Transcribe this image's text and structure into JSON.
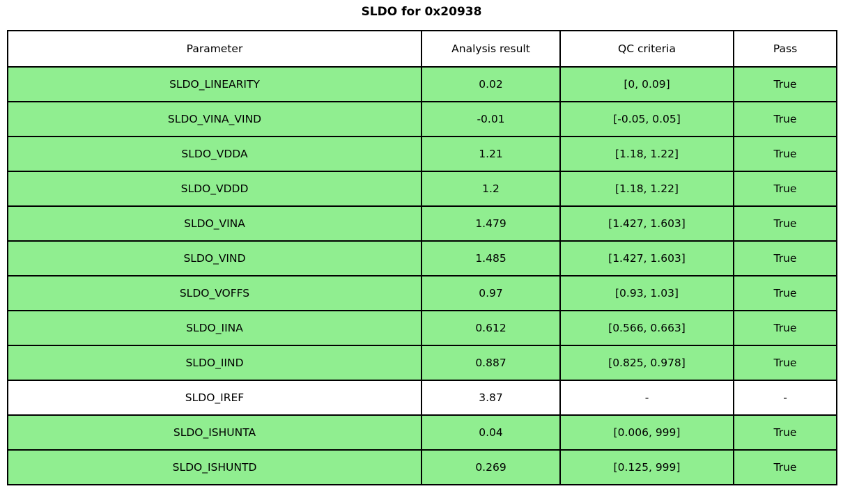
{
  "title": "SLDO for 0x20938",
  "colors": {
    "pass_row_green": "#90EE90",
    "neutral_row_white": "#ffffff",
    "border_black": "#000000"
  },
  "table": {
    "columns": [
      "Parameter",
      "Analysis result",
      "QC criteria",
      "Pass"
    ],
    "rows": [
      {
        "parameter": "SLDO_LINEARITY",
        "analysis_result": "0.02",
        "qc_criteria": "[0, 0.09]",
        "pass": "True",
        "highlight": true
      },
      {
        "parameter": "SLDO_VINA_VIND",
        "analysis_result": "-0.01",
        "qc_criteria": "[-0.05, 0.05]",
        "pass": "True",
        "highlight": true
      },
      {
        "parameter": "SLDO_VDDA",
        "analysis_result": "1.21",
        "qc_criteria": "[1.18, 1.22]",
        "pass": "True",
        "highlight": true
      },
      {
        "parameter": "SLDO_VDDD",
        "analysis_result": "1.2",
        "qc_criteria": "[1.18, 1.22]",
        "pass": "True",
        "highlight": true
      },
      {
        "parameter": "SLDO_VINA",
        "analysis_result": "1.479",
        "qc_criteria": "[1.427, 1.603]",
        "pass": "True",
        "highlight": true
      },
      {
        "parameter": "SLDO_VIND",
        "analysis_result": "1.485",
        "qc_criteria": "[1.427, 1.603]",
        "pass": "True",
        "highlight": true
      },
      {
        "parameter": "SLDO_VOFFS",
        "analysis_result": "0.97",
        "qc_criteria": "[0.93, 1.03]",
        "pass": "True",
        "highlight": true
      },
      {
        "parameter": "SLDO_IINA",
        "analysis_result": "0.612",
        "qc_criteria": "[0.566, 0.663]",
        "pass": "True",
        "highlight": true
      },
      {
        "parameter": "SLDO_IIND",
        "analysis_result": "0.887",
        "qc_criteria": "[0.825, 0.978]",
        "pass": "True",
        "highlight": true
      },
      {
        "parameter": "SLDO_IREF",
        "analysis_result": "3.87",
        "qc_criteria": "-",
        "pass": "-",
        "highlight": false
      },
      {
        "parameter": "SLDO_ISHUNTA",
        "analysis_result": "0.04",
        "qc_criteria": "[0.006, 999]",
        "pass": "True",
        "highlight": true
      },
      {
        "parameter": "SLDO_ISHUNTD",
        "analysis_result": "0.269",
        "qc_criteria": "[0.125, 999]",
        "pass": "True",
        "highlight": true
      }
    ]
  }
}
